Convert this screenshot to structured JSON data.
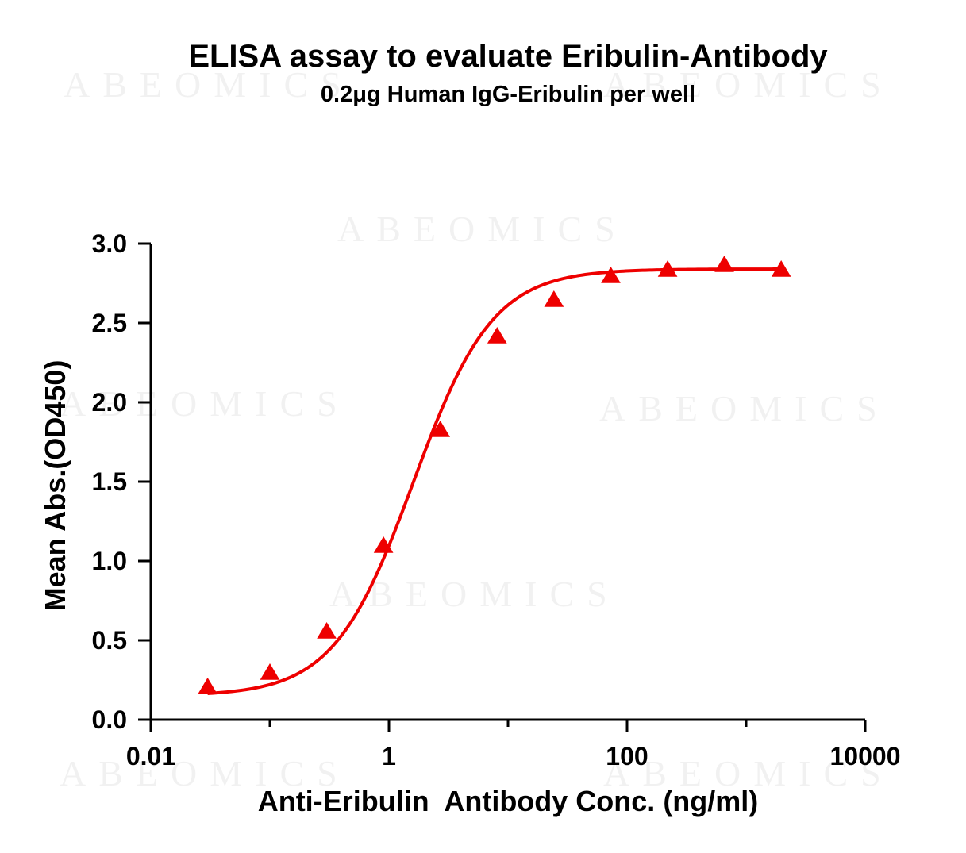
{
  "watermark_text": "ABEOMICS",
  "chart_data": {
    "type": "scatter",
    "title": "ELISA assay to evaluate Eribulin-Antibody",
    "subtitle": "0.2μg Human IgG-Eribulin per well",
    "xlabel": "Anti-Eribulin  Antibody Conc. (ng/ml)",
    "ylabel": "Mean Abs.(OD450)",
    "x_scale": "log",
    "xlim": [
      0.01,
      10000
    ],
    "ylim": [
      0,
      3.0
    ],
    "x_ticks": [
      0.01,
      1,
      100,
      10000
    ],
    "x_tick_labels": [
      "0.01",
      "1",
      "100",
      "10000"
    ],
    "y_ticks": [
      0,
      0.5,
      1.0,
      1.5,
      2.0,
      2.5,
      3.0
    ],
    "y_tick_labels": [
      "0.0",
      "0.5",
      "1.0",
      "1.5",
      "2.0",
      "2.5",
      "3.0"
    ],
    "grid": false,
    "legend": "none",
    "marker": "triangle",
    "color": "#ee0000",
    "series": [
      {
        "x": [
          0.03,
          0.1,
          0.3,
          0.9,
          2.7,
          8.1,
          24.3,
          73,
          219,
          656,
          1970
        ],
        "y": [
          0.2,
          0.29,
          0.55,
          1.09,
          1.82,
          2.41,
          2.64,
          2.79,
          2.83,
          2.86,
          2.83
        ]
      }
    ],
    "fit": {
      "type": "4PL",
      "bottom": 0.15,
      "top": 2.84,
      "ec50": 1.6,
      "hill": 1.3
    }
  }
}
